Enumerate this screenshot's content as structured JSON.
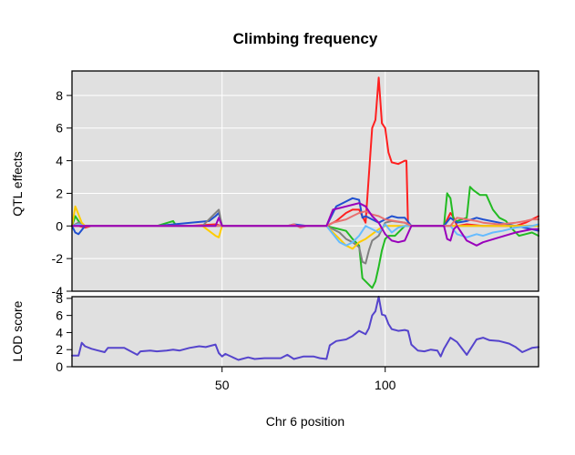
{
  "chart_data": [
    {
      "type": "line",
      "panel": "effects",
      "title": "Climbing frequency",
      "ylabel": "QTL effects",
      "xlim": [
        4,
        147
      ],
      "ylim": [
        -4,
        9.5
      ],
      "yticks": [
        -4,
        -2,
        0,
        2,
        4,
        6,
        8
      ],
      "xgrid": [
        50,
        100
      ],
      "ygrid": [
        -4,
        -2,
        0,
        2,
        4,
        6,
        8
      ],
      "series": [
        {
          "color": "#ff2020",
          "x": [
            4,
            6,
            8,
            10,
            30,
            40,
            48,
            50,
            82,
            85,
            88,
            90,
            92,
            94,
            96,
            97,
            98,
            99,
            100,
            101,
            102,
            104,
            106,
            106.5,
            107,
            108,
            110,
            115,
            118,
            120,
            121,
            122,
            125,
            130,
            135,
            140,
            143,
            145,
            147
          ],
          "y": [
            0,
            0,
            -0.1,
            0,
            0,
            0,
            0.1,
            0,
            0,
            0.3,
            0.8,
            1.0,
            1.0,
            0.2,
            6.0,
            6.5,
            9.1,
            6.3,
            6.0,
            4.5,
            3.9,
            3.8,
            4.0,
            4.0,
            0,
            0,
            0,
            0,
            0,
            0.8,
            0.5,
            0,
            0.1,
            0,
            0,
            0,
            0.2,
            0.4,
            0.6
          ]
        },
        {
          "color": "#22bb22",
          "x": [
            4,
            5,
            6,
            7,
            8,
            10,
            30,
            35,
            36,
            48,
            50,
            82,
            88,
            90,
            92,
            93,
            94,
            95,
            96,
            97,
            98,
            99,
            100,
            101,
            103,
            106,
            108,
            115,
            118,
            119,
            120,
            121,
            122,
            125,
            126,
            127,
            129,
            131,
            133,
            135,
            137,
            139,
            141,
            143,
            145,
            147
          ],
          "y": [
            0,
            0.6,
            0.3,
            0,
            0,
            0,
            0,
            0.3,
            0,
            0,
            0,
            0,
            -0.3,
            -0.8,
            -1.2,
            -3.2,
            -3.4,
            -3.6,
            -3.8,
            -3.4,
            -2.5,
            -1.5,
            -0.8,
            -0.6,
            -0.6,
            0,
            0,
            0,
            0,
            2.0,
            1.7,
            0.3,
            0.3,
            0.5,
            2.4,
            2.2,
            1.9,
            1.9,
            1.0,
            0.5,
            0.3,
            -0.2,
            -0.6,
            -0.5,
            -0.4,
            -0.6
          ]
        },
        {
          "color": "#2050d0",
          "x": [
            4,
            5,
            6,
            8,
            10,
            30,
            46,
            48,
            49,
            50,
            70,
            72,
            76,
            82,
            85,
            88,
            90,
            92,
            93,
            94,
            96,
            98,
            100,
            102,
            104,
            106,
            108,
            118,
            120,
            122,
            125,
            128,
            130,
            135,
            140,
            145,
            147
          ],
          "y": [
            0,
            -0.4,
            -0.5,
            0,
            0,
            0,
            0.3,
            0.6,
            0.8,
            0,
            0,
            0.1,
            0,
            0,
            1.2,
            1.5,
            1.7,
            1.6,
            0.5,
            0.6,
            0.4,
            0.2,
            0.4,
            0.6,
            0.5,
            0.5,
            0,
            0,
            0.5,
            0.2,
            0.3,
            0.5,
            0.4,
            0.2,
            0,
            -0.2,
            -0.3
          ]
        },
        {
          "color": "#808080",
          "x": [
            4,
            6,
            8,
            10,
            30,
            44,
            46,
            48,
            49,
            50,
            82,
            86,
            88,
            90,
            92,
            93,
            94,
            95,
            96,
            98,
            100,
            102,
            106,
            108,
            147
          ],
          "y": [
            0,
            0.2,
            0,
            0,
            0,
            0,
            0.4,
            0.8,
            1.0,
            0,
            0,
            -0.4,
            -0.8,
            -1.0,
            -1.3,
            -2.2,
            -2.3,
            -1.5,
            -0.9,
            -0.6,
            0.2,
            0.3,
            0.2,
            0,
            0
          ]
        },
        {
          "color": "#ffcc00",
          "x": [
            4,
            5,
            6,
            7,
            8,
            10,
            30,
            44,
            46,
            48,
            49,
            50,
            82,
            86,
            88,
            90,
            92,
            94,
            96,
            98,
            100,
            106,
            108,
            147
          ],
          "y": [
            0,
            1.2,
            0.7,
            0.2,
            0,
            0,
            0,
            0,
            -0.3,
            -0.6,
            -0.7,
            0,
            0,
            -0.8,
            -1.2,
            -1.4,
            -1.0,
            -0.8,
            -0.5,
            -0.2,
            0,
            0,
            0,
            0
          ]
        },
        {
          "color": "#66bbff",
          "x": [
            4,
            6,
            8,
            10,
            30,
            82,
            84,
            86,
            88,
            90,
            92,
            94,
            96,
            98,
            100,
            102,
            104,
            106,
            108,
            120,
            122,
            125,
            128,
            130,
            133,
            136,
            140,
            145,
            147
          ],
          "y": [
            0,
            0.1,
            0,
            0,
            0,
            0,
            -0.5,
            -1.0,
            -1.2,
            -1.0,
            -0.6,
            0,
            -0.2,
            -0.4,
            0.1,
            -0.4,
            -0.1,
            0,
            0,
            0,
            -0.5,
            -0.7,
            -0.5,
            -0.6,
            -0.4,
            -0.3,
            -0.1,
            0,
            0.1
          ]
        },
        {
          "color": "#e87070",
          "x": [
            4,
            8,
            10,
            30,
            70,
            72,
            74,
            76,
            82,
            84,
            86,
            88,
            90,
            92,
            94,
            96,
            98,
            100,
            106,
            108,
            120,
            122,
            125,
            128,
            130,
            135,
            140,
            143,
            145,
            147
          ],
          "y": [
            0,
            0,
            0,
            0,
            0,
            0.1,
            -0.1,
            0,
            0,
            0.2,
            0.3,
            0.4,
            0.6,
            0.8,
            0.9,
            0.7,
            0.6,
            0.4,
            0.2,
            0,
            0,
            0.5,
            0.4,
            0.3,
            0.2,
            0.1,
            0.2,
            0.3,
            0.4,
            0.4
          ]
        },
        {
          "color": "#9900bb",
          "x": [
            4,
            8,
            10,
            48,
            49,
            50,
            82,
            84,
            86,
            88,
            90,
            92,
            94,
            96,
            98,
            100,
            102,
            104,
            106,
            108,
            118,
            119,
            120,
            121,
            122,
            125,
            128,
            130,
            135,
            140,
            145,
            147
          ],
          "y": [
            0,
            0,
            0,
            0,
            0.5,
            0,
            0,
            1.0,
            1.1,
            1.2,
            1.3,
            1.4,
            1.2,
            0.6,
            0.2,
            -0.5,
            -0.9,
            -1.0,
            -0.9,
            0,
            0,
            -0.8,
            -0.9,
            -0.2,
            0,
            -0.9,
            -1.2,
            -1.0,
            -0.7,
            -0.4,
            -0.2,
            -0.2
          ]
        }
      ]
    },
    {
      "type": "line",
      "panel": "lod",
      "ylabel": "LOD score",
      "xlabel": "Chr 6 position",
      "xlim": [
        4,
        147
      ],
      "ylim": [
        0,
        8.2
      ],
      "yticks": [
        0,
        2,
        4,
        6,
        8
      ],
      "xticks": [
        50,
        100
      ],
      "xgrid": [
        50,
        100
      ],
      "series": [
        {
          "color": "#5544cc",
          "x": [
            4,
            6,
            7,
            8,
            10,
            12,
            14,
            15,
            20,
            24,
            25,
            28,
            30,
            33,
            35,
            37,
            40,
            43,
            45,
            48,
            49,
            50,
            51,
            55,
            58,
            60,
            63,
            66,
            68,
            70,
            72,
            75,
            78,
            80,
            82,
            83,
            85,
            88,
            90,
            92,
            94,
            95,
            96,
            97,
            98,
            99,
            100,
            101,
            102,
            103,
            104,
            106,
            107,
            108,
            110,
            112,
            114,
            116,
            117,
            118,
            120,
            122,
            125,
            128,
            130,
            132,
            135,
            138,
            140,
            142,
            145,
            147
          ],
          "y": [
            1.3,
            1.3,
            2.8,
            2.4,
            2.1,
            1.9,
            1.7,
            2.2,
            2.2,
            1.4,
            1.8,
            1.9,
            1.8,
            1.9,
            2.0,
            1.9,
            2.2,
            2.4,
            2.3,
            2.6,
            1.6,
            1.2,
            1.5,
            0.8,
            1.1,
            0.9,
            1.0,
            1.0,
            1.0,
            1.4,
            0.9,
            1.2,
            1.2,
            1.0,
            0.9,
            2.5,
            3.0,
            3.2,
            3.6,
            4.2,
            3.8,
            4.5,
            6.0,
            6.5,
            8.2,
            6.1,
            6.0,
            5.0,
            4.4,
            4.3,
            4.2,
            4.3,
            4.2,
            2.6,
            1.9,
            1.8,
            2.0,
            1.9,
            1.2,
            2.1,
            3.4,
            2.9,
            1.4,
            3.2,
            3.4,
            3.1,
            3.0,
            2.7,
            2.3,
            1.7,
            2.2,
            2.3
          ]
        }
      ]
    }
  ]
}
